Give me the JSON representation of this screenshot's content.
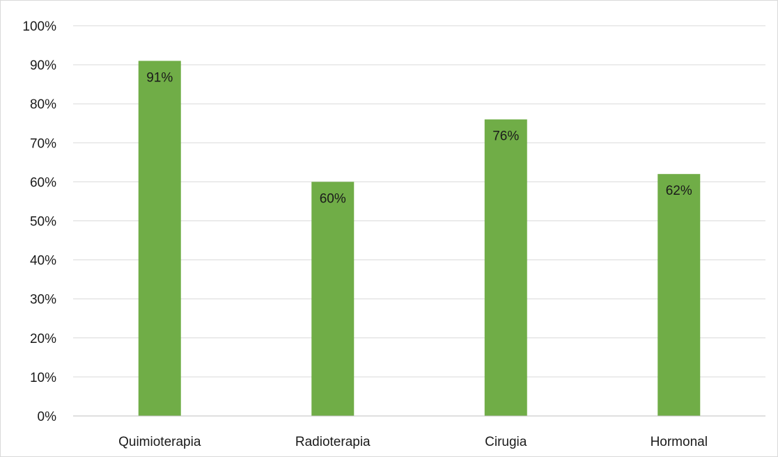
{
  "chart_data": {
    "type": "bar",
    "categories": [
      "Quimioterapia",
      "Radioterapia",
      "Cirugia",
      "Hormonal"
    ],
    "values": [
      91,
      60,
      76,
      62
    ],
    "data_labels": [
      "91%",
      "60%",
      "76%",
      "62%"
    ],
    "value_unit": "%",
    "title": "",
    "xlabel": "",
    "ylabel": "",
    "ylim": [
      0,
      100
    ],
    "y_ticks": [
      0,
      10,
      20,
      30,
      40,
      50,
      60,
      70,
      80,
      90,
      100
    ],
    "y_tick_labels": [
      "0%",
      "10%",
      "20%",
      "30%",
      "40%",
      "50%",
      "60%",
      "70%",
      "80%",
      "90%",
      "100%"
    ],
    "grid": true,
    "legend": "none",
    "bar_color": "#70ad47"
  }
}
